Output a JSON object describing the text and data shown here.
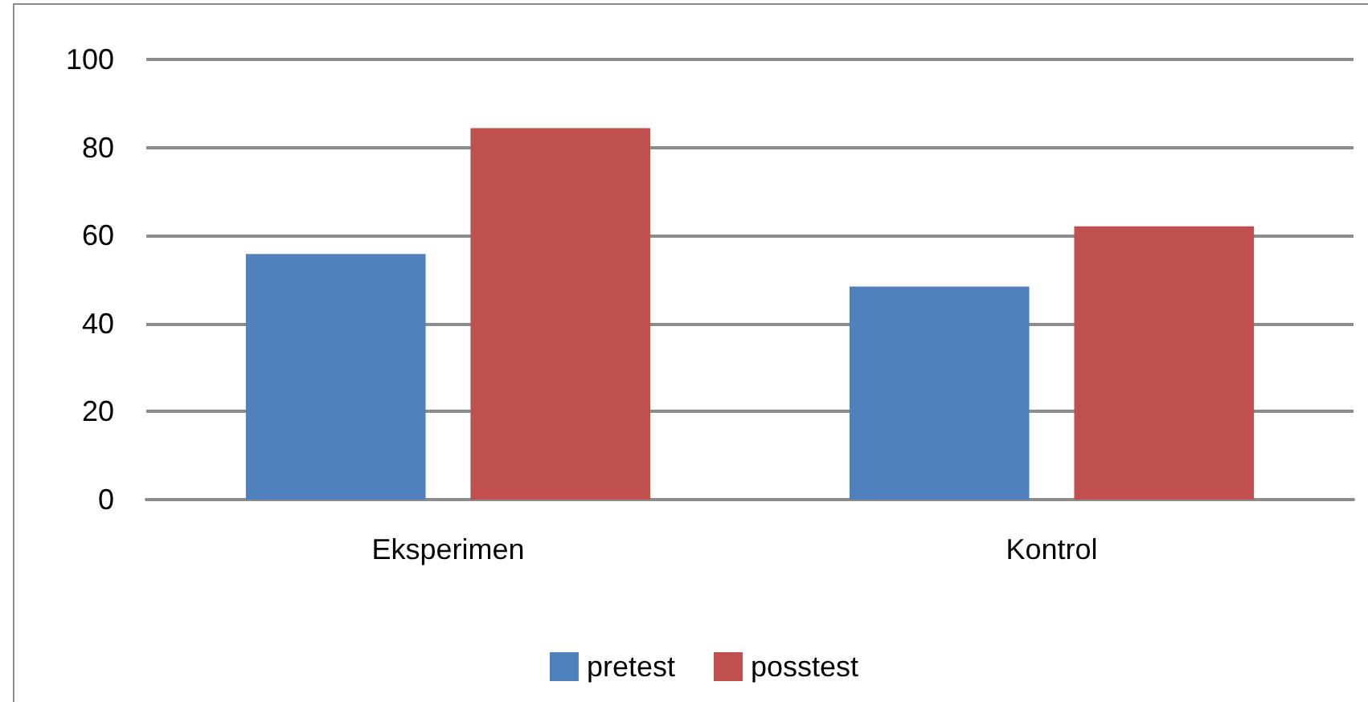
{
  "chart_data": {
    "type": "bar",
    "categories": [
      "Eksperimen",
      "Kontrol"
    ],
    "series": [
      {
        "name": "pretest",
        "color": "#4f81bd",
        "values": [
          55.8,
          48.4
        ]
      },
      {
        "name": "posstest",
        "color": "#c0504d",
        "values": [
          84.4,
          62.1
        ]
      }
    ],
    "ylim": [
      0,
      100
    ],
    "yticks": [
      0,
      20,
      40,
      60,
      80,
      100
    ],
    "grid": "y",
    "legend": "bottom"
  }
}
